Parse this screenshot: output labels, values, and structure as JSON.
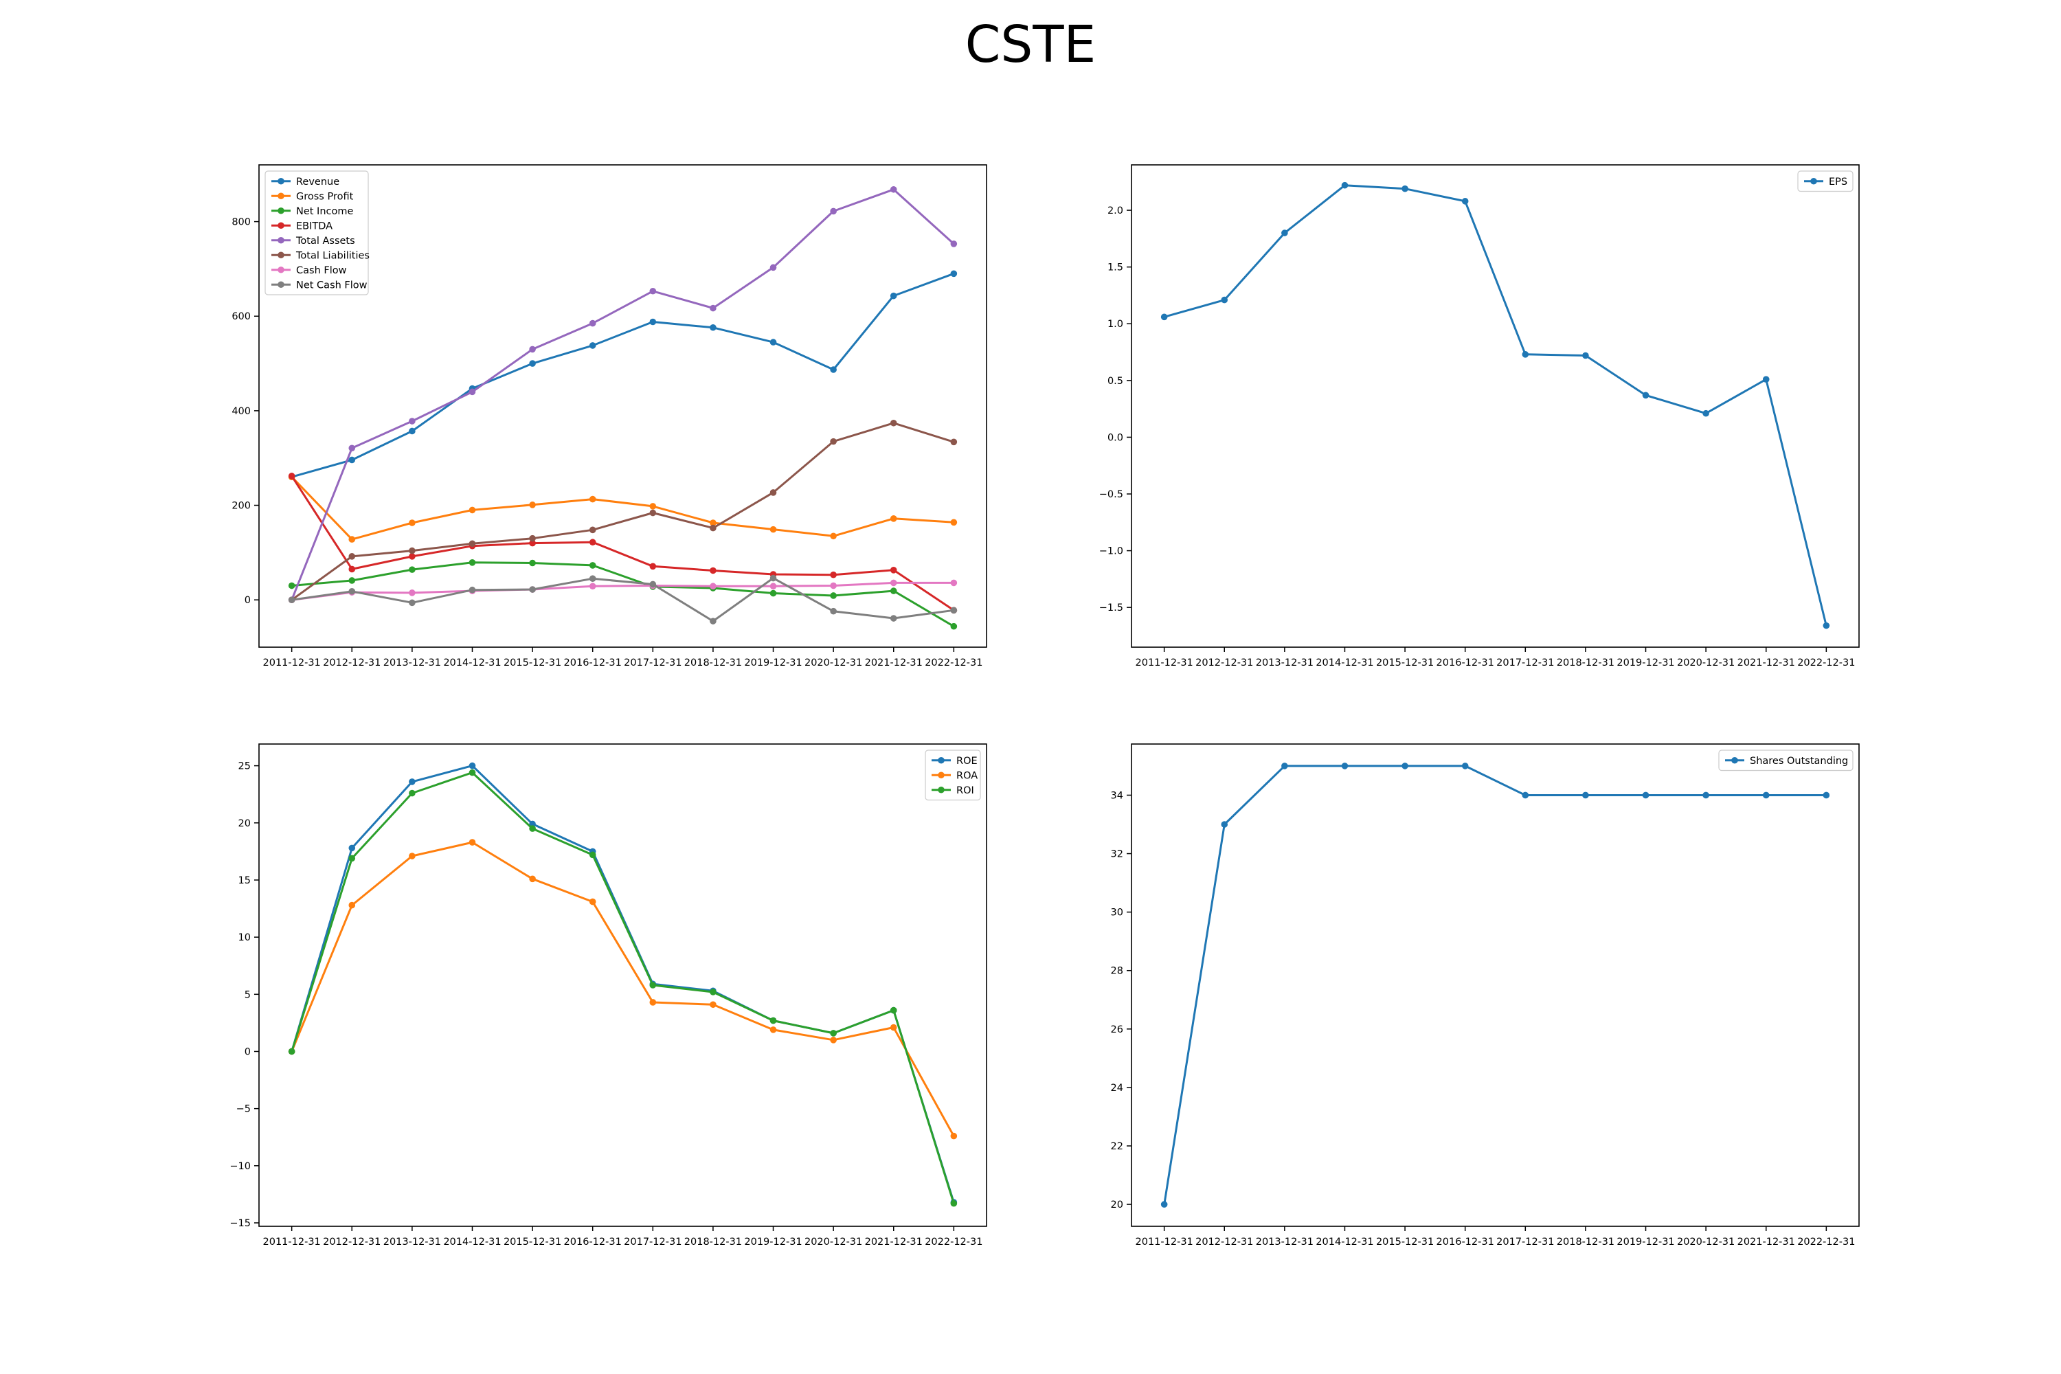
{
  "title": "CSTE",
  "colors": {
    "blue": "#1f77b4",
    "orange": "#ff7f0e",
    "green": "#2ca02c",
    "red": "#d62728",
    "purple": "#9467bd",
    "brown": "#8c564b",
    "pink": "#e377c2",
    "gray": "#7f7f7f"
  },
  "chart_data": [
    {
      "type": "line",
      "legend": "top-left",
      "grid": false,
      "ylim": [
        -100,
        920
      ],
      "yticks": [
        0,
        200,
        400,
        600,
        800
      ],
      "categories": [
        "2011-12-31",
        "2012-12-31",
        "2013-12-31",
        "2014-12-31",
        "2015-12-31",
        "2016-12-31",
        "2017-12-31",
        "2018-12-31",
        "2019-12-31",
        "2020-12-31",
        "2021-12-31",
        "2022-12-31"
      ],
      "series": [
        {
          "name": "Revenue",
          "color": "#1f77b4",
          "values": [
            260,
            296,
            357,
            447,
            500,
            538,
            588,
            576,
            545,
            487,
            643,
            690
          ]
        },
        {
          "name": "Gross Profit",
          "color": "#ff7f0e",
          "values": [
            260,
            128,
            163,
            190,
            201,
            213,
            198,
            163,
            149,
            135,
            172,
            164
          ]
        },
        {
          "name": "Net Income",
          "color": "#2ca02c",
          "values": [
            30,
            41,
            64,
            79,
            78,
            73,
            28,
            25,
            14,
            9,
            19,
            -56
          ]
        },
        {
          "name": "EBITDA",
          "color": "#d62728",
          "values": [
            262,
            65,
            92,
            114,
            120,
            122,
            71,
            62,
            54,
            53,
            63,
            -22
          ]
        },
        {
          "name": "Total Assets",
          "color": "#9467bd",
          "values": [
            0,
            321,
            378,
            440,
            530,
            585,
            653,
            617,
            703,
            822,
            868,
            753
          ]
        },
        {
          "name": "Total Liabilities",
          "color": "#8c564b",
          "values": [
            0,
            92,
            104,
            119,
            130,
            148,
            184,
            152,
            227,
            335,
            374,
            334
          ]
        },
        {
          "name": "Cash Flow",
          "color": "#e377c2",
          "values": [
            0,
            16,
            15,
            19,
            22,
            29,
            30,
            29,
            29,
            30,
            36,
            36
          ]
        },
        {
          "name": "Net Cash Flow",
          "color": "#7f7f7f",
          "values": [
            0,
            18,
            -6,
            21,
            22,
            45,
            33,
            -45,
            46,
            -24,
            -39,
            -22
          ]
        }
      ]
    },
    {
      "type": "line",
      "legend": "top-right",
      "grid": false,
      "ylim": [
        -1.85,
        2.4
      ],
      "yticks": [
        2.0,
        1.5,
        1.0,
        0.5,
        0.0,
        -0.5,
        -1.0,
        -1.5
      ],
      "ytick_labels": [
        "2.0",
        "1.5",
        "1.0",
        "0.5",
        "0.0",
        "−0.5",
        "−1.0",
        "−1.5"
      ],
      "categories": [
        "2011-12-31",
        "2012-12-31",
        "2013-12-31",
        "2014-12-31",
        "2015-12-31",
        "2016-12-31",
        "2017-12-31",
        "2018-12-31",
        "2019-12-31",
        "2020-12-31",
        "2021-12-31",
        "2022-12-31"
      ],
      "series": [
        {
          "name": "EPS",
          "color": "#1f77b4",
          "values": [
            1.06,
            1.21,
            1.8,
            2.22,
            2.19,
            2.08,
            0.73,
            0.72,
            0.37,
            0.21,
            0.51,
            -1.66
          ]
        }
      ]
    },
    {
      "type": "line",
      "legend": "top-right",
      "grid": false,
      "ylim": [
        -15.3,
        26.9
      ],
      "yticks": [
        25,
        20,
        15,
        10,
        5,
        0,
        -5,
        -10,
        -15
      ],
      "ytick_labels": [
        "25",
        "20",
        "15",
        "10",
        "5",
        "0",
        "−5",
        "−10",
        "−15"
      ],
      "categories": [
        "2011-12-31",
        "2012-12-31",
        "2013-12-31",
        "2014-12-31",
        "2015-12-31",
        "2016-12-31",
        "2017-12-31",
        "2018-12-31",
        "2019-12-31",
        "2020-12-31",
        "2021-12-31",
        "2022-12-31"
      ],
      "series": [
        {
          "name": "ROE",
          "color": "#1f77b4",
          "values": [
            0,
            17.8,
            23.6,
            25.0,
            19.9,
            17.5,
            5.9,
            5.3,
            2.7,
            1.6,
            3.6,
            -13.2
          ]
        },
        {
          "name": "ROA",
          "color": "#ff7f0e",
          "values": [
            0,
            12.8,
            17.1,
            18.3,
            15.1,
            13.1,
            4.3,
            4.1,
            1.9,
            1.0,
            2.1,
            -7.4
          ]
        },
        {
          "name": "ROI",
          "color": "#2ca02c",
          "values": [
            0,
            16.9,
            22.6,
            24.4,
            19.5,
            17.2,
            5.8,
            5.2,
            2.7,
            1.6,
            3.6,
            -13.3
          ]
        }
      ]
    },
    {
      "type": "line",
      "legend": "top-right",
      "grid": false,
      "ylim": [
        19.25,
        35.75
      ],
      "yticks": [
        20,
        22,
        24,
        26,
        28,
        30,
        32,
        34
      ],
      "categories": [
        "2011-12-31",
        "2012-12-31",
        "2013-12-31",
        "2014-12-31",
        "2015-12-31",
        "2016-12-31",
        "2017-12-31",
        "2018-12-31",
        "2019-12-31",
        "2020-12-31",
        "2021-12-31",
        "2022-12-31"
      ],
      "series": [
        {
          "name": "Shares Outstanding",
          "color": "#1f77b4",
          "values": [
            20,
            33,
            35,
            35,
            35,
            35,
            34,
            34,
            34,
            34,
            34,
            34
          ]
        }
      ]
    }
  ]
}
